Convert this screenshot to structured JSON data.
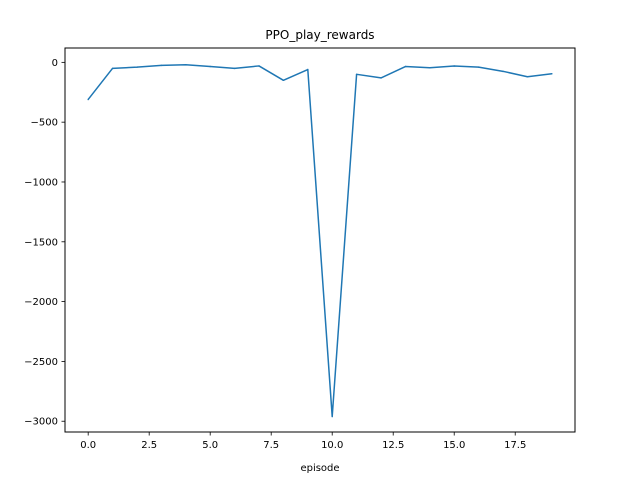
{
  "chart_data": {
    "type": "line",
    "title": "PPO_play_rewards",
    "xlabel": "episode",
    "ylabel": "",
    "xlim": [
      -0.95,
      19.95
    ],
    "ylim": [
      -3090,
      120
    ],
    "xticks": [
      0.0,
      2.5,
      5.0,
      7.5,
      10.0,
      12.5,
      15.0,
      17.5
    ],
    "xtick_labels": [
      "0.0",
      "2.5",
      "5.0",
      "7.5",
      "10.0",
      "12.5",
      "15.0",
      "17.5"
    ],
    "yticks": [
      0,
      -500,
      -1000,
      -1500,
      -2000,
      -2500,
      -3000
    ],
    "ytick_labels": [
      "0",
      "−500",
      "−1000",
      "−1500",
      "−2000",
      "−2500",
      "−3000"
    ],
    "grid": false,
    "color": "#1f77b4",
    "series": [
      {
        "x": [
          0,
          1,
          2,
          3,
          4,
          5,
          6,
          7,
          8,
          9,
          10,
          11,
          12,
          13,
          14,
          15,
          16,
          17,
          18,
          19
        ],
        "y": [
          -310,
          -50,
          -40,
          -25,
          -20,
          -35,
          -50,
          -30,
          -150,
          -60,
          -2960,
          -100,
          -130,
          -35,
          -45,
          -30,
          -40,
          -75,
          -120,
          -95
        ]
      }
    ]
  }
}
